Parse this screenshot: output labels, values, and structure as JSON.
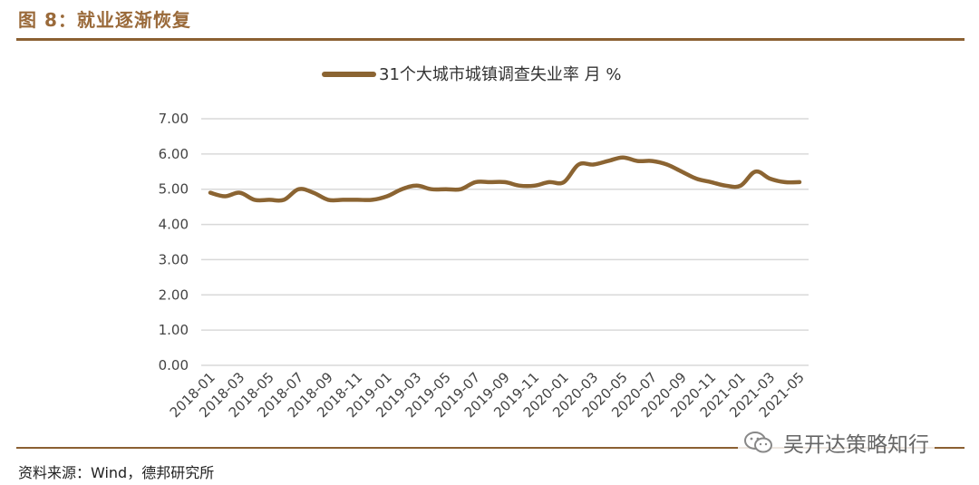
{
  "figure": {
    "title": "图 8：就业逐渐恢复",
    "source": "资料来源：Wind，德邦研究所",
    "watermark": "吴开达策略知行"
  },
  "colors": {
    "line": "#8b6432",
    "rule": "#8b6032",
    "title": "#9a6a3a",
    "grid": "#d9d9d9"
  },
  "chart_data": {
    "type": "line",
    "legend_position": "top-center",
    "grid": true,
    "ylim": [
      0,
      7
    ],
    "y_ticks": [
      "0.00",
      "1.00",
      "2.00",
      "3.00",
      "4.00",
      "5.00",
      "6.00",
      "7.00"
    ],
    "x_tick_labels": [
      "2018-01",
      "2018-03",
      "2018-05",
      "2018-07",
      "2018-09",
      "2018-11",
      "2019-01",
      "2019-03",
      "2019-05",
      "2019-07",
      "2019-09",
      "2019-11",
      "2020-01",
      "2020-03",
      "2020-05",
      "2020-07",
      "2020-09",
      "2020-11",
      "2021-01",
      "2021-03",
      "2021-05"
    ],
    "x": [
      "2018-01",
      "2018-02",
      "2018-03",
      "2018-04",
      "2018-05",
      "2018-06",
      "2018-07",
      "2018-08",
      "2018-09",
      "2018-10",
      "2018-11",
      "2018-12",
      "2019-01",
      "2019-02",
      "2019-03",
      "2019-04",
      "2019-05",
      "2019-06",
      "2019-07",
      "2019-08",
      "2019-09",
      "2019-10",
      "2019-11",
      "2019-12",
      "2020-01",
      "2020-02",
      "2020-03",
      "2020-04",
      "2020-05",
      "2020-06",
      "2020-07",
      "2020-08",
      "2020-09",
      "2020-10",
      "2020-11",
      "2020-12",
      "2021-01",
      "2021-02",
      "2021-03",
      "2021-04",
      "2021-05"
    ],
    "series": [
      {
        "name": "31个大城市城镇调查失业率 月 %",
        "values": [
          4.9,
          4.8,
          4.9,
          4.7,
          4.7,
          4.7,
          5.0,
          4.9,
          4.7,
          4.7,
          4.7,
          4.7,
          4.8,
          5.0,
          5.1,
          5.0,
          5.0,
          5.0,
          5.2,
          5.2,
          5.2,
          5.1,
          5.1,
          5.2,
          5.2,
          5.7,
          5.7,
          5.8,
          5.9,
          5.8,
          5.8,
          5.7,
          5.5,
          5.3,
          5.2,
          5.1,
          5.1,
          5.5,
          5.3,
          5.2,
          5.2
        ]
      }
    ]
  }
}
